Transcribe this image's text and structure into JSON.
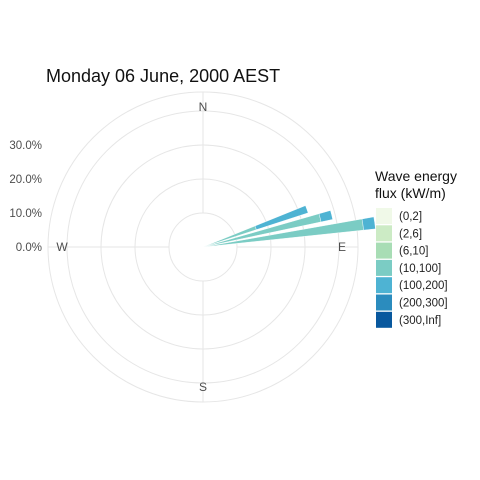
{
  "chart_data": {
    "type": "windrose",
    "title": "Monday 06 June, 2000 AEST",
    "radial_ticks": [
      {
        "value": 0,
        "label": "0.0%"
      },
      {
        "value": 10,
        "label": "10.0%"
      },
      {
        "value": 20,
        "label": "20.0%"
      },
      {
        "value": 30,
        "label": "30.0%"
      }
    ],
    "rmax": 35,
    "directions": [
      "N",
      "E",
      "S",
      "W"
    ],
    "legend": {
      "title_lines": [
        "Wave energy",
        "flux (kW/m)"
      ],
      "placement": "right",
      "entries": [
        {
          "label": "(0,2]",
          "color": "#f0f9e8"
        },
        {
          "label": "(2,6]",
          "color": "#ccebc5"
        },
        {
          "label": "(6,10]",
          "color": "#a8ddb5"
        },
        {
          "label": "(10,100]",
          "color": "#7bccc4"
        },
        {
          "label": "(100,200]",
          "color": "#4eb3d3"
        },
        {
          "label": "(200,300]",
          "color": "#2b8cbe"
        },
        {
          "label": "(300,Inf]",
          "color": "#08589e"
        }
      ]
    },
    "sector_width_deg": 4,
    "sectors": [
      {
        "direction_deg": 82,
        "segments": [
          {
            "class": "(10,100]",
            "value": 37.5
          },
          {
            "class": "(100,200]",
            "value": 3.5
          }
        ]
      },
      {
        "direction_deg": 76,
        "segments": [
          {
            "class": "(10,100]",
            "value": 25.5
          },
          {
            "class": "(100,200]",
            "value": 3.5
          }
        ]
      },
      {
        "direction_deg": 70,
        "segments": [
          {
            "class": "(10,100]",
            "value": 6.5
          },
          {
            "class": "(100,200]",
            "value": 16.0
          }
        ]
      }
    ],
    "grid": true
  }
}
